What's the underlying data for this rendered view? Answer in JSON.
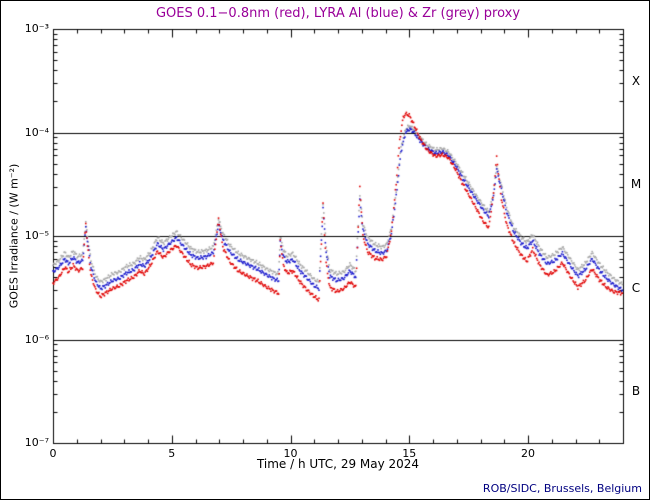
{
  "footer": {
    "credit": "ROB/SIDC, Brussels, Belgium"
  },
  "colors": {
    "title": "#990099",
    "credit": "#000080",
    "axis": "#000000",
    "goes_red": "#e00000",
    "lyra_al_blue": "#1a1acc",
    "lyra_zr_grey": "#a8a8a8"
  },
  "chart_data": {
    "type": "scatter",
    "title": "GOES 0.1−0.8nm (red), LYRA Al (blue) & Zr (grey) proxy",
    "xlabel": "Time / h UTC, 29 May 2024",
    "ylabel": "GOES Irradiance / (W m⁻²)",
    "x_range_hours": [
      0,
      24
    ],
    "y_range": [
      1e-07,
      0.001
    ],
    "y_scale": "log",
    "grid": "off",
    "x_tick_hours": [
      0,
      5,
      10,
      15,
      20
    ],
    "x_tick_labels": [
      "0",
      "5",
      "10",
      "15",
      "20"
    ],
    "x_minor_tick_step_hours": 1,
    "y_tick_exponents": [
      -3,
      -4,
      -5,
      -6,
      -7
    ],
    "y_tick_labels": [
      "10⁻³",
      "10⁻⁴",
      "10⁻⁵",
      "10⁻⁶",
      "10⁻⁷"
    ],
    "flare_class_labels": [
      "X",
      "M",
      "C",
      "B"
    ],
    "class_boundary_lines": [
      0.0001,
      1e-05,
      1e-06
    ],
    "series": [
      {
        "name": "LYRA Zr proxy",
        "color_key": "lyra_zr_grey",
        "points": [
          [
            0.0,
            5.2e-06
          ],
          [
            0.25,
            5.8e-06
          ],
          [
            0.5,
            6.9e-06
          ],
          [
            0.65,
            6.2e-06
          ],
          [
            0.85,
            7.1e-06
          ],
          [
            1.05,
            6.3e-06
          ],
          [
            1.25,
            6.7e-06
          ],
          [
            1.38,
            1.35e-05
          ],
          [
            1.45,
            1e-05
          ],
          [
            1.6,
            5.8e-06
          ],
          [
            1.8,
            4.1e-06
          ],
          [
            2.0,
            3.6e-06
          ],
          [
            2.2,
            3.8e-06
          ],
          [
            2.5,
            4.3e-06
          ],
          [
            2.8,
            4.5e-06
          ],
          [
            3.1,
            5.1e-06
          ],
          [
            3.4,
            5.4e-06
          ],
          [
            3.65,
            6.2e-06
          ],
          [
            3.85,
            5.9e-06
          ],
          [
            4.1,
            7e-06
          ],
          [
            4.4,
            9.7e-06
          ],
          [
            4.65,
            8.5e-06
          ],
          [
            4.95,
            9.9e-06
          ],
          [
            5.2,
            1.1e-05
          ],
          [
            5.5,
            9.1e-06
          ],
          [
            5.8,
            7.6e-06
          ],
          [
            6.1,
            7e-06
          ],
          [
            6.45,
            7.2e-06
          ],
          [
            6.75,
            7.9e-06
          ],
          [
            6.97,
            1.45e-05
          ],
          [
            7.15,
            1.06e-05
          ],
          [
            7.45,
            8.1e-06
          ],
          [
            7.8,
            6.8e-06
          ],
          [
            8.2,
            6.1e-06
          ],
          [
            8.6,
            5.5e-06
          ],
          [
            9.0,
            4.8e-06
          ],
          [
            9.35,
            4.4e-06
          ],
          [
            9.5,
            4.3e-06
          ],
          [
            9.57,
            9.9e-06
          ],
          [
            9.7,
            7.4e-06
          ],
          [
            9.85,
            6.4e-06
          ],
          [
            10.1,
            6.8e-06
          ],
          [
            10.4,
            5.3e-06
          ],
          [
            10.7,
            4.5e-06
          ],
          [
            11.0,
            3.8e-06
          ],
          [
            11.2,
            3.6e-06
          ],
          [
            11.37,
            2.1e-05
          ],
          [
            11.5,
            8.1e-06
          ],
          [
            11.65,
            4.7e-06
          ],
          [
            11.95,
            4.3e-06
          ],
          [
            12.25,
            4.5e-06
          ],
          [
            12.5,
            5.3e-06
          ],
          [
            12.75,
            4.6e-06
          ],
          [
            12.92,
            2.5e-05
          ],
          [
            13.05,
            1.3e-05
          ],
          [
            13.25,
            9.7e-06
          ],
          [
            13.55,
            8.3e-06
          ],
          [
            13.85,
            7.8e-06
          ],
          [
            14.05,
            8.3e-06
          ],
          [
            14.25,
            1.2e-05
          ],
          [
            14.45,
            2.7e-05
          ],
          [
            14.65,
            7.2e-05
          ],
          [
            14.85,
            0.000108
          ],
          [
            15.0,
            0.000115
          ],
          [
            15.15,
            0.00011
          ],
          [
            15.45,
            9e-05
          ],
          [
            15.75,
            7.6e-05
          ],
          [
            16.1,
            6.8e-05
          ],
          [
            16.4,
            7e-05
          ],
          [
            16.65,
            6.5e-05
          ],
          [
            16.95,
            5.2e-05
          ],
          [
            17.25,
            4e-05
          ],
          [
            17.55,
            3.1e-05
          ],
          [
            17.85,
            2.4e-05
          ],
          [
            18.1,
            2e-05
          ],
          [
            18.35,
            1.7e-05
          ],
          [
            18.55,
            2.6e-05
          ],
          [
            18.68,
            4.8e-05
          ],
          [
            18.85,
            3.3e-05
          ],
          [
            19.1,
            1.9e-05
          ],
          [
            19.4,
            1.2e-05
          ],
          [
            19.7,
            9.9e-06
          ],
          [
            19.95,
            8.7e-06
          ],
          [
            20.2,
            1.03e-05
          ],
          [
            20.5,
            7.6e-06
          ],
          [
            20.8,
            6.2e-06
          ],
          [
            21.1,
            6.6e-06
          ],
          [
            21.45,
            7.8e-06
          ],
          [
            21.8,
            5.9e-06
          ],
          [
            22.1,
            4.7e-06
          ],
          [
            22.4,
            5.4e-06
          ],
          [
            22.7,
            6.9e-06
          ],
          [
            23.0,
            5.4e-06
          ],
          [
            23.3,
            4.5e-06
          ],
          [
            23.6,
            3.9e-06
          ],
          [
            23.97,
            3.4e-06
          ]
        ]
      },
      {
        "name": "LYRA Al proxy",
        "color_key": "lyra_al_blue",
        "points": [
          [
            0.0,
            4.5e-06
          ],
          [
            0.25,
            5e-06
          ],
          [
            0.5,
            6e-06
          ],
          [
            0.65,
            5.4e-06
          ],
          [
            0.85,
            6.2e-06
          ],
          [
            1.05,
            5.5e-06
          ],
          [
            1.25,
            5.8e-06
          ],
          [
            1.38,
            1.2e-05
          ],
          [
            1.45,
            9e-06
          ],
          [
            1.6,
            5e-06
          ],
          [
            1.8,
            3.6e-06
          ],
          [
            2.0,
            3.1e-06
          ],
          [
            2.2,
            3.3e-06
          ],
          [
            2.5,
            3.7e-06
          ],
          [
            2.8,
            3.9e-06
          ],
          [
            3.1,
            4.4e-06
          ],
          [
            3.4,
            4.7e-06
          ],
          [
            3.65,
            5.4e-06
          ],
          [
            3.85,
            5.1e-06
          ],
          [
            4.1,
            6.1e-06
          ],
          [
            4.4,
            8.4e-06
          ],
          [
            4.65,
            7.4e-06
          ],
          [
            4.95,
            8.6e-06
          ],
          [
            5.2,
            9.6e-06
          ],
          [
            5.5,
            7.9e-06
          ],
          [
            5.8,
            6.6e-06
          ],
          [
            6.1,
            6.1e-06
          ],
          [
            6.45,
            6.3e-06
          ],
          [
            6.75,
            6.9e-06
          ],
          [
            6.97,
            1.28e-05
          ],
          [
            7.15,
            9.2e-06
          ],
          [
            7.45,
            7e-06
          ],
          [
            7.8,
            5.9e-06
          ],
          [
            8.2,
            5.3e-06
          ],
          [
            8.6,
            4.8e-06
          ],
          [
            9.0,
            4.2e-06
          ],
          [
            9.35,
            3.8e-06
          ],
          [
            9.5,
            3.7e-06
          ],
          [
            9.57,
            8.6e-06
          ],
          [
            9.7,
            6.4e-06
          ],
          [
            9.85,
            5.6e-06
          ],
          [
            10.1,
            5.9e-06
          ],
          [
            10.4,
            4.6e-06
          ],
          [
            10.7,
            3.9e-06
          ],
          [
            11.0,
            3.3e-06
          ],
          [
            11.2,
            3.1e-06
          ],
          [
            11.37,
            1.85e-05
          ],
          [
            11.5,
            7e-06
          ],
          [
            11.65,
            4.1e-06
          ],
          [
            11.95,
            3.7e-06
          ],
          [
            12.25,
            3.9e-06
          ],
          [
            12.5,
            4.6e-06
          ],
          [
            12.75,
            4e-06
          ],
          [
            12.92,
            2.2e-05
          ],
          [
            13.05,
            1.15e-05
          ],
          [
            13.25,
            8.4e-06
          ],
          [
            13.55,
            7.2e-06
          ],
          [
            13.85,
            6.8e-06
          ],
          [
            14.05,
            7.2e-06
          ],
          [
            14.25,
            1.05e-05
          ],
          [
            14.45,
            2.4e-05
          ],
          [
            14.65,
            6.5e-05
          ],
          [
            14.85,
            0.0001
          ],
          [
            15.0,
            0.000108
          ],
          [
            15.15,
            0.000103
          ],
          [
            15.45,
            8.4e-05
          ],
          [
            15.75,
            7e-05
          ],
          [
            16.1,
            6.3e-05
          ],
          [
            16.4,
            6.5e-05
          ],
          [
            16.65,
            6e-05
          ],
          [
            16.95,
            4.8e-05
          ],
          [
            17.25,
            3.6e-05
          ],
          [
            17.55,
            2.8e-05
          ],
          [
            17.85,
            2.2e-05
          ],
          [
            18.1,
            1.8e-05
          ],
          [
            18.35,
            1.55e-05
          ],
          [
            18.55,
            2.4e-05
          ],
          [
            18.68,
            4.4e-05
          ],
          [
            18.85,
            3e-05
          ],
          [
            19.1,
            1.7e-05
          ],
          [
            19.4,
            1.1e-05
          ],
          [
            19.7,
            8.6e-06
          ],
          [
            19.95,
            7.6e-06
          ],
          [
            20.2,
            9e-06
          ],
          [
            20.5,
            6.6e-06
          ],
          [
            20.8,
            5.4e-06
          ],
          [
            21.1,
            5.7e-06
          ],
          [
            21.45,
            6.8e-06
          ],
          [
            21.8,
            5.1e-06
          ],
          [
            22.1,
            4.1e-06
          ],
          [
            22.4,
            4.7e-06
          ],
          [
            22.7,
            6e-06
          ],
          [
            23.0,
            4.7e-06
          ],
          [
            23.3,
            3.9e-06
          ],
          [
            23.6,
            3.4e-06
          ],
          [
            23.97,
            3e-06
          ]
        ]
      },
      {
        "name": "GOES 0.1-0.8nm",
        "color_key": "goes_red",
        "points": [
          [
            0.0,
            3.5e-06
          ],
          [
            0.25,
            4e-06
          ],
          [
            0.5,
            5e-06
          ],
          [
            0.65,
            4.5e-06
          ],
          [
            0.85,
            5.2e-06
          ],
          [
            1.05,
            4.6e-06
          ],
          [
            1.25,
            4.9e-06
          ],
          [
            1.38,
            1.35e-05
          ],
          [
            1.45,
            8e-06
          ],
          [
            1.6,
            4.2e-06
          ],
          [
            1.8,
            3e-06
          ],
          [
            2.0,
            2.6e-06
          ],
          [
            2.2,
            2.8e-06
          ],
          [
            2.5,
            3.1e-06
          ],
          [
            2.8,
            3.3e-06
          ],
          [
            3.1,
            3.7e-06
          ],
          [
            3.4,
            4e-06
          ],
          [
            3.65,
            4.6e-06
          ],
          [
            3.85,
            4.3e-06
          ],
          [
            4.1,
            5.2e-06
          ],
          [
            4.4,
            7.1e-06
          ],
          [
            4.65,
            6.2e-06
          ],
          [
            4.95,
            7.3e-06
          ],
          [
            5.2,
            8.1e-06
          ],
          [
            5.5,
            6.5e-06
          ],
          [
            5.8,
            5.3e-06
          ],
          [
            6.1,
            4.9e-06
          ],
          [
            6.45,
            5.1e-06
          ],
          [
            6.75,
            5.5e-06
          ],
          [
            6.97,
            1.45e-05
          ],
          [
            7.15,
            7.8e-06
          ],
          [
            7.45,
            5.6e-06
          ],
          [
            7.8,
            4.6e-06
          ],
          [
            8.2,
            4.1e-06
          ],
          [
            8.6,
            3.7e-06
          ],
          [
            9.0,
            3.2e-06
          ],
          [
            9.35,
            2.9e-06
          ],
          [
            9.5,
            2.8e-06
          ],
          [
            9.57,
            9.2e-06
          ],
          [
            9.7,
            5.2e-06
          ],
          [
            9.85,
            4.4e-06
          ],
          [
            10.1,
            4.6e-06
          ],
          [
            10.4,
            3.6e-06
          ],
          [
            10.7,
            3e-06
          ],
          [
            11.0,
            2.6e-06
          ],
          [
            11.2,
            2.4e-06
          ],
          [
            11.37,
            2.05e-05
          ],
          [
            11.5,
            5.5e-06
          ],
          [
            11.65,
            3.2e-06
          ],
          [
            11.95,
            2.9e-06
          ],
          [
            12.25,
            3.1e-06
          ],
          [
            12.5,
            3.6e-06
          ],
          [
            12.75,
            3.2e-06
          ],
          [
            12.92,
            3e-05
          ],
          [
            13.05,
            1e-05
          ],
          [
            13.25,
            7e-06
          ],
          [
            13.55,
            6.1e-06
          ],
          [
            13.85,
            5.9e-06
          ],
          [
            14.05,
            6.4e-06
          ],
          [
            14.25,
            1.1e-05
          ],
          [
            14.45,
            3.2e-05
          ],
          [
            14.6,
            8.5e-05
          ],
          [
            14.75,
            0.000142
          ],
          [
            14.88,
            0.000152
          ],
          [
            15.0,
            0.000146
          ],
          [
            15.15,
            0.000125
          ],
          [
            15.45,
            8.8e-05
          ],
          [
            15.75,
            6.8e-05
          ],
          [
            16.1,
            5.9e-05
          ],
          [
            16.4,
            6.1e-05
          ],
          [
            16.65,
            5.7e-05
          ],
          [
            16.95,
            4.4e-05
          ],
          [
            17.25,
            3.2e-05
          ],
          [
            17.55,
            2.4e-05
          ],
          [
            17.85,
            1.8e-05
          ],
          [
            18.1,
            1.4e-05
          ],
          [
            18.35,
            1.2e-05
          ],
          [
            18.55,
            2.6e-05
          ],
          [
            18.68,
            5.8e-05
          ],
          [
            18.85,
            2.5e-05
          ],
          [
            19.1,
            1.3e-05
          ],
          [
            19.4,
            8.6e-06
          ],
          [
            19.7,
            6.6e-06
          ],
          [
            19.95,
            5.7e-06
          ],
          [
            20.2,
            7.4e-06
          ],
          [
            20.5,
            5.2e-06
          ],
          [
            20.8,
            4.2e-06
          ],
          [
            21.1,
            4.5e-06
          ],
          [
            21.45,
            5.5e-06
          ],
          [
            21.8,
            4e-06
          ],
          [
            22.1,
            3.2e-06
          ],
          [
            22.4,
            3.7e-06
          ],
          [
            22.7,
            4.8e-06
          ],
          [
            23.0,
            3.8e-06
          ],
          [
            23.3,
            3.2e-06
          ],
          [
            23.6,
            2.9e-06
          ],
          [
            23.97,
            2.8e-06
          ]
        ]
      }
    ]
  }
}
